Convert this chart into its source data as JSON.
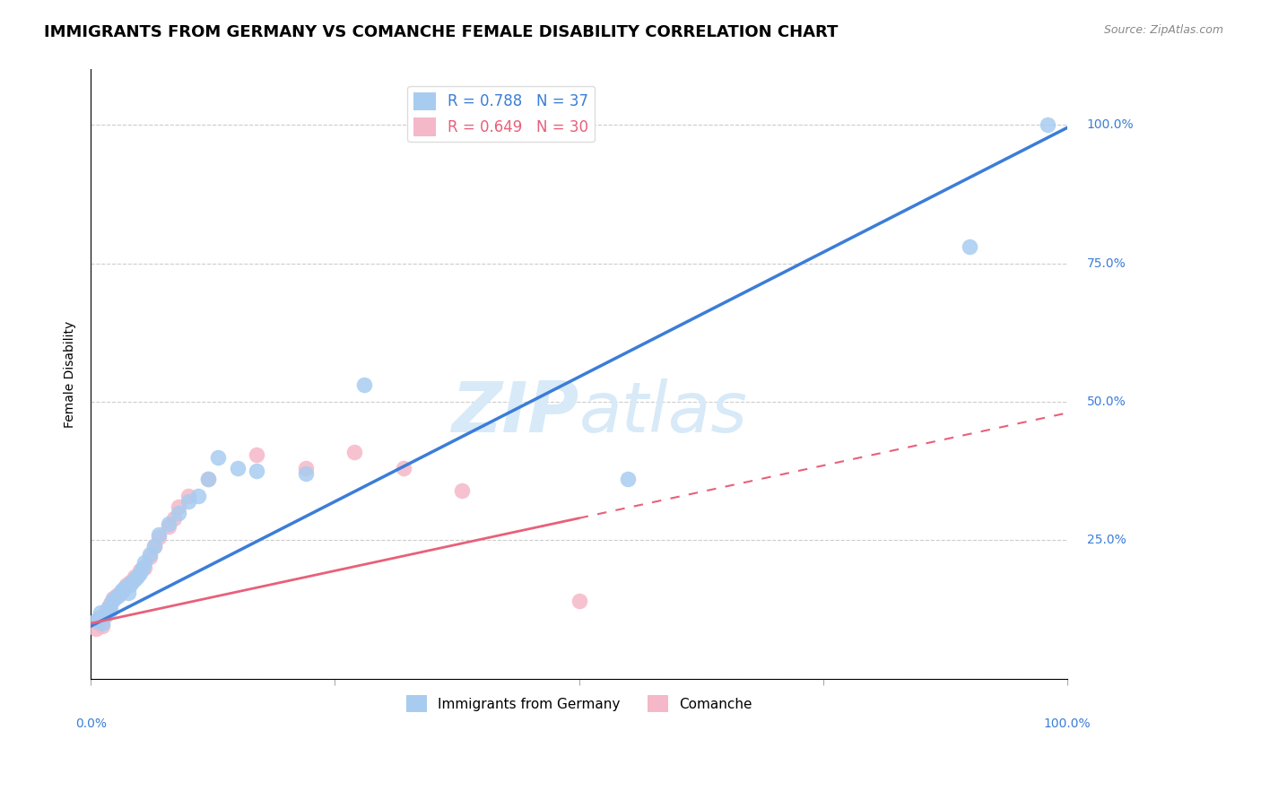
{
  "title": "IMMIGRANTS FROM GERMANY VS COMANCHE FEMALE DISABILITY CORRELATION CHART",
  "source": "Source: ZipAtlas.com",
  "ylabel": "Female Disability",
  "blue_label": "Immigrants from Germany",
  "pink_label": "Comanche",
  "blue_R": 0.788,
  "blue_N": 37,
  "pink_R": 0.649,
  "pink_N": 30,
  "blue_color": "#A8CCF0",
  "pink_color": "#F5B8C8",
  "blue_line_color": "#3B7DD8",
  "pink_line_color": "#E8607A",
  "grid_color": "#CCCCCC",
  "watermark_zip": "ZIP",
  "watermark_atlas": "atlas",
  "watermark_color": "#D8EAF8",
  "blue_scatter_x": [
    0.5,
    0.8,
    1.0,
    1.2,
    1.5,
    1.8,
    2.0,
    2.2,
    2.5,
    2.8,
    3.0,
    3.2,
    3.5,
    3.8,
    4.0,
    4.2,
    4.5,
    4.8,
    5.0,
    5.3,
    5.5,
    6.0,
    6.5,
    7.0,
    8.0,
    9.0,
    10.0,
    11.0,
    12.0,
    15.0,
    17.0,
    22.0,
    28.0,
    55.0,
    90.0,
    98.0,
    13.0
  ],
  "blue_scatter_y": [
    10.5,
    11.0,
    12.0,
    10.0,
    11.5,
    13.0,
    12.5,
    14.0,
    14.5,
    15.0,
    15.5,
    16.0,
    16.5,
    15.5,
    17.0,
    17.5,
    18.0,
    18.5,
    19.0,
    20.0,
    21.0,
    22.5,
    24.0,
    26.0,
    28.0,
    30.0,
    32.0,
    33.0,
    36.0,
    38.0,
    37.5,
    37.0,
    53.0,
    36.0,
    78.0,
    100.0,
    40.0
  ],
  "pink_scatter_x": [
    0.5,
    0.8,
    1.0,
    1.2,
    1.5,
    1.8,
    2.0,
    2.3,
    2.6,
    3.0,
    3.3,
    3.7,
    4.0,
    4.5,
    5.0,
    5.5,
    6.0,
    6.5,
    7.0,
    8.0,
    8.5,
    9.0,
    10.0,
    12.0,
    17.0,
    22.0,
    27.0,
    32.0,
    38.0,
    50.0
  ],
  "pink_scatter_y": [
    9.0,
    10.0,
    11.0,
    9.5,
    12.0,
    13.0,
    13.5,
    14.5,
    15.0,
    15.5,
    16.0,
    17.0,
    17.5,
    18.5,
    19.5,
    20.0,
    22.0,
    24.0,
    25.5,
    27.5,
    29.0,
    31.0,
    33.0,
    36.0,
    40.5,
    38.0,
    41.0,
    38.0,
    34.0,
    14.0
  ],
  "xlim": [
    0,
    100
  ],
  "ylim": [
    0,
    110
  ],
  "title_fontsize": 13,
  "legend_fontsize": 12,
  "tick_fontsize": 10
}
